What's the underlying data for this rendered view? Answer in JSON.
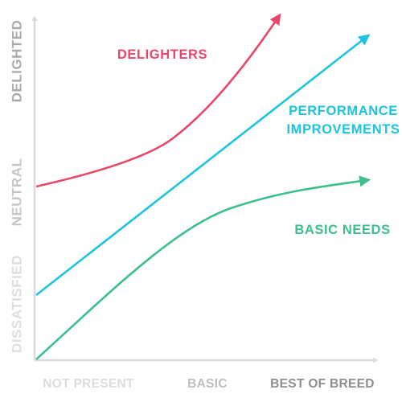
{
  "diagram": {
    "y_axis_labels": {
      "delighted": "DELIGHTED",
      "neutral": "NEUTRAL",
      "dissatisfied": "DISSATISFIED"
    },
    "x_axis_labels": {
      "not_present": "NOT PRESENT",
      "basic": "BASIC",
      "best_of_breed": "BEST OF BREED"
    },
    "curves": {
      "delighters": {
        "label": "DELIGHTERS",
        "color": "#e8476a"
      },
      "performance": {
        "label_line1": "PERFORMANCE",
        "label_line2": "IMPROVEMENTS",
        "color": "#1cc3dd"
      },
      "basic_needs": {
        "label": "BASIC NEEDS",
        "color": "#3dbf8c"
      }
    },
    "colors": {
      "axis": "#d9d9d9",
      "y_label_top": "#aaaaaa",
      "y_label_mid": "#c6c6c6",
      "y_label_bottom": "#dedede",
      "x_label_left": "#dcdcdc",
      "x_label_mid": "#bdbdbd",
      "x_label_right": "#8e8e8e"
    }
  }
}
